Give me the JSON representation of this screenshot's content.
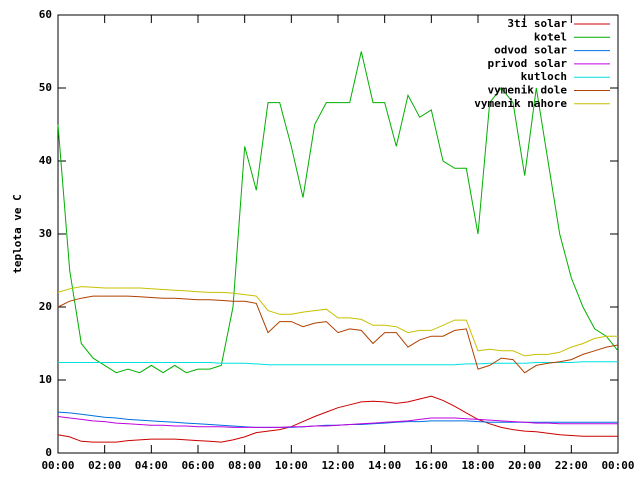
{
  "chart_data": {
    "type": "line",
    "y_label": "teplota ve C",
    "legend": "top-right",
    "xlim": [
      0,
      24
    ],
    "ylim": [
      0,
      60
    ],
    "yticks": [
      0,
      10,
      20,
      30,
      40,
      50,
      60
    ],
    "xticks": [
      {
        "value": 0,
        "label": "00:00"
      },
      {
        "value": 2,
        "label": "02:00"
      },
      {
        "value": 4,
        "label": "04:00"
      },
      {
        "value": 6,
        "label": "06:00"
      },
      {
        "value": 8,
        "label": "08:00"
      },
      {
        "value": 10,
        "label": "10:00"
      },
      {
        "value": 12,
        "label": "12:00"
      },
      {
        "value": 14,
        "label": "14:00"
      },
      {
        "value": 16,
        "label": "16:00"
      },
      {
        "value": 18,
        "label": "18:00"
      },
      {
        "value": 20,
        "label": "20:00"
      },
      {
        "value": 22,
        "label": "22:00"
      },
      {
        "value": 24,
        "label": "00:00"
      }
    ],
    "x": [
      0,
      0.5,
      1,
      1.5,
      2,
      2.5,
      3,
      3.5,
      4,
      4.5,
      5,
      5.5,
      6,
      6.5,
      7,
      7.5,
      8,
      8.5,
      9,
      9.5,
      10,
      10.5,
      11,
      11.5,
      12,
      12.5,
      13,
      13.5,
      14,
      14.5,
      15,
      15.5,
      16,
      16.5,
      17,
      17.5,
      18,
      18.5,
      19,
      19.5,
      20,
      20.5,
      21,
      21.5,
      22,
      22.5,
      23,
      23.5,
      24
    ],
    "series": [
      {
        "name": "3ti solar",
        "color": "#cc0000",
        "values": [
          2.5,
          2.2,
          1.6,
          1.5,
          1.5,
          1.5,
          1.7,
          1.8,
          1.9,
          1.9,
          1.9,
          1.8,
          1.7,
          1.6,
          1.5,
          1.8,
          2.2,
          2.8,
          3,
          3.2,
          3.6,
          4.3,
          5,
          5.6,
          6.2,
          6.6,
          7,
          7.1,
          7,
          6.8,
          7,
          7.4,
          7.8,
          7.2,
          6.4,
          5.5,
          4.6,
          4,
          3.5,
          3.2,
          3,
          2.9,
          2.7,
          2.5,
          2.4,
          2.3,
          2.3,
          2.3,
          2.3
        ]
      },
      {
        "name": "kotel",
        "color": "#00b000",
        "values": [
          45,
          25,
          15,
          13,
          12,
          11,
          11.5,
          11,
          12,
          11,
          12,
          11,
          11.5,
          11.5,
          12,
          20,
          42,
          36,
          48,
          48,
          42,
          35,
          45,
          48,
          48,
          48,
          55,
          48,
          48,
          42,
          49,
          46,
          47,
          40,
          39,
          39,
          30,
          48,
          50,
          48,
          38,
          50,
          40,
          30,
          24,
          20,
          17,
          16,
          14
        ]
      },
      {
        "name": "odvod solar",
        "color": "#0070e0",
        "values": [
          5.6,
          5.5,
          5.3,
          5.1,
          4.9,
          4.8,
          4.6,
          4.5,
          4.4,
          4.3,
          4.2,
          4.1,
          4,
          3.9,
          3.8,
          3.7,
          3.6,
          3.5,
          3.5,
          3.5,
          3.5,
          3.6,
          3.7,
          3.8,
          3.8,
          3.9,
          3.9,
          4,
          4.1,
          4.2,
          4.3,
          4.3,
          4.4,
          4.4,
          4.4,
          4.4,
          4.3,
          4.2,
          4.2,
          4.2,
          4.2,
          4.2,
          4.2,
          4.2,
          4.2,
          4.2,
          4.2,
          4.2,
          4.2
        ]
      },
      {
        "name": "privod solar",
        "color": "#c000e0",
        "values": [
          5,
          4.8,
          4.6,
          4.4,
          4.3,
          4.1,
          4,
          3.9,
          3.8,
          3.8,
          3.7,
          3.7,
          3.6,
          3.6,
          3.6,
          3.5,
          3.5,
          3.5,
          3.5,
          3.5,
          3.6,
          3.6,
          3.7,
          3.7,
          3.8,
          3.9,
          4,
          4.1,
          4.2,
          4.3,
          4.4,
          4.6,
          4.8,
          4.8,
          4.8,
          4.7,
          4.6,
          4.5,
          4.4,
          4.3,
          4.2,
          4.1,
          4.1,
          4,
          4,
          4,
          4,
          4,
          4
        ]
      },
      {
        "name": "kutloch",
        "color": "#00e0e0",
        "values": [
          12.4,
          12.4,
          12.4,
          12.4,
          12.4,
          12.4,
          12.4,
          12.4,
          12.4,
          12.4,
          12.4,
          12.4,
          12.4,
          12.4,
          12.3,
          12.3,
          12.3,
          12.2,
          12.1,
          12.1,
          12.1,
          12.1,
          12.1,
          12.1,
          12.1,
          12.1,
          12.1,
          12.1,
          12.1,
          12.1,
          12.1,
          12.1,
          12.1,
          12.1,
          12.1,
          12.2,
          12.2,
          12.3,
          12.3,
          12.3,
          12.3,
          12.4,
          12.4,
          12.4,
          12.4,
          12.5,
          12.5,
          12.5,
          12.5
        ]
      },
      {
        "name": "vymenik dole",
        "color": "#b04000",
        "values": [
          20,
          20.8,
          21.2,
          21.5,
          21.5,
          21.5,
          21.5,
          21.4,
          21.3,
          21.2,
          21.2,
          21.1,
          21,
          21,
          20.9,
          20.8,
          20.8,
          20.5,
          16.5,
          18,
          18,
          17.3,
          17.8,
          18,
          16.5,
          17,
          16.8,
          15,
          16.5,
          16.5,
          14.5,
          15.5,
          16,
          16,
          16.8,
          17,
          11.5,
          12,
          13,
          12.8,
          11,
          12,
          12.3,
          12.5,
          12.8,
          13.5,
          14,
          14.5,
          14.8
        ]
      },
      {
        "name": "vymenik nahore",
        "color": "#c8c000",
        "values": [
          22,
          22.5,
          22.8,
          22.7,
          22.6,
          22.6,
          22.6,
          22.6,
          22.5,
          22.4,
          22.3,
          22.2,
          22.1,
          22,
          22,
          21.9,
          21.7,
          21.5,
          19.5,
          19,
          19,
          19.3,
          19.5,
          19.7,
          18.5,
          18.5,
          18.3,
          17.5,
          17.5,
          17.3,
          16.5,
          16.8,
          16.8,
          17.5,
          18.2,
          18.2,
          14,
          14.2,
          14,
          14,
          13.3,
          13.5,
          13.5,
          13.8,
          14.5,
          15,
          15.7,
          16,
          16
        ]
      }
    ]
  }
}
